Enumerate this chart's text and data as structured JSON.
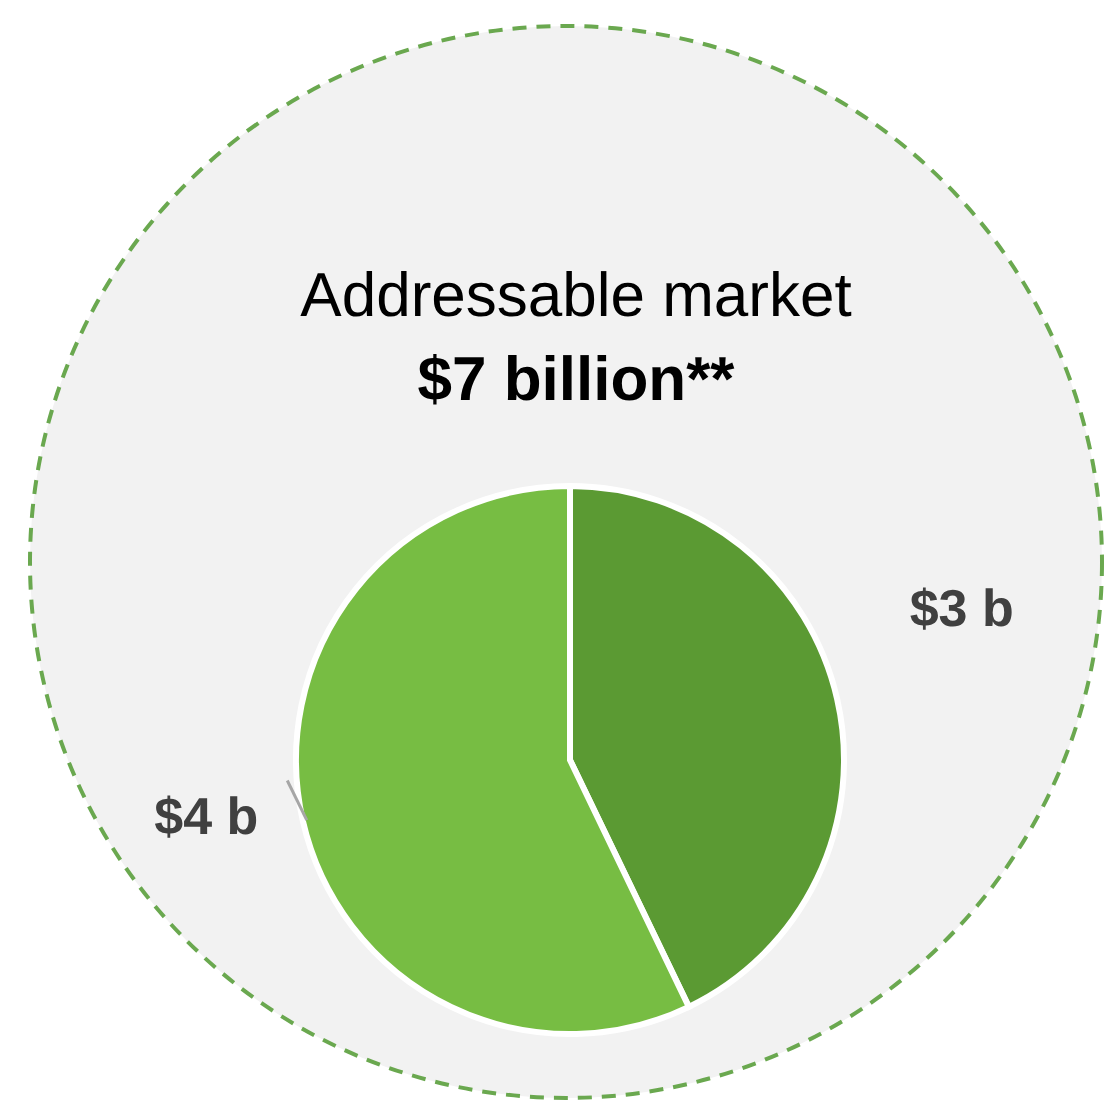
{
  "chart_data": {
    "type": "pie",
    "title": "Addressable market",
    "subtitle": "$7 billion**",
    "categories": [
      null,
      null
    ],
    "values": [
      3,
      4
    ],
    "colors": [
      "#5b9a33",
      "#77bd43"
    ],
    "value_labels": [
      "$3 b",
      "$4 b"
    ]
  }
}
